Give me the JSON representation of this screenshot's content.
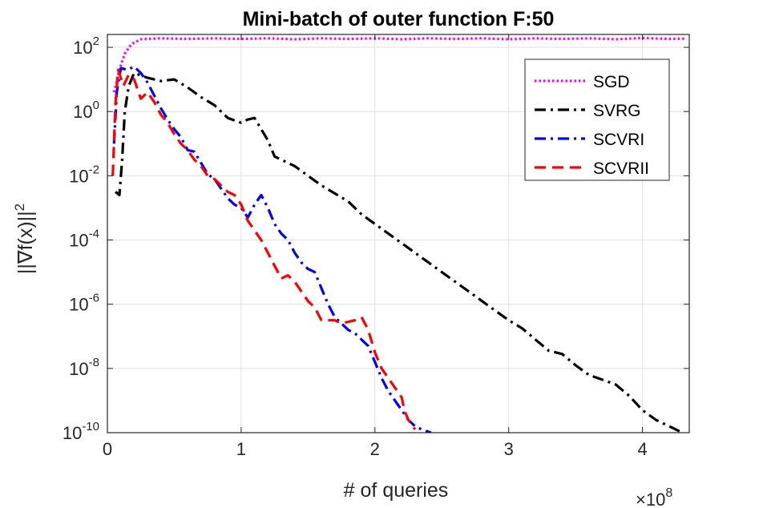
{
  "chart_data": {
    "type": "line",
    "title": "Mini-batch of outer function F:50",
    "xlabel": "# of queries",
    "ylabel": "||∇f(x)||",
    "ylabel_exponent": "2",
    "x_multiplier_base": "×10",
    "x_multiplier_exp": "8",
    "xscale": "linear",
    "yscale": "log",
    "xlim": [
      0,
      4.35
    ],
    "ylim_log10": [
      -10,
      2.4
    ],
    "grid": true,
    "legend_position": "top-right",
    "xticks": [
      {
        "value": 0,
        "label": "0"
      },
      {
        "value": 1,
        "label": "1"
      },
      {
        "value": 2,
        "label": "2"
      },
      {
        "value": 3,
        "label": "3"
      },
      {
        "value": 4,
        "label": "4"
      }
    ],
    "yticks": [
      {
        "exp": 2,
        "base": "10",
        "sup": "2"
      },
      {
        "exp": 0,
        "base": "10",
        "sup": "0"
      },
      {
        "exp": -2,
        "base": "10",
        "sup": "-2"
      },
      {
        "exp": -4,
        "base": "10",
        "sup": "-4"
      },
      {
        "exp": -6,
        "base": "10",
        "sup": "-6"
      },
      {
        "exp": -8,
        "base": "10",
        "sup": "-8"
      },
      {
        "exp": -10,
        "base": "10",
        "sup": "-10"
      }
    ],
    "series": [
      {
        "name": "SGD",
        "color": "#ff00ff",
        "style": "dotted",
        "x_unit": "1e8 queries",
        "y_unit": "log10",
        "points": [
          [
            0.05,
            0.6
          ],
          [
            0.09,
            1.3
          ],
          [
            0.13,
            1.8
          ],
          [
            0.18,
            2.1
          ],
          [
            0.25,
            2.25
          ],
          [
            0.4,
            2.28
          ],
          [
            0.6,
            2.26
          ],
          [
            0.8,
            2.28
          ],
          [
            1.0,
            2.26
          ],
          [
            1.2,
            2.28
          ],
          [
            1.4,
            2.25
          ],
          [
            1.6,
            2.28
          ],
          [
            1.8,
            2.26
          ],
          [
            2.0,
            2.28
          ],
          [
            2.2,
            2.25
          ],
          [
            2.4,
            2.28
          ],
          [
            2.6,
            2.26
          ],
          [
            2.8,
            2.28
          ],
          [
            3.0,
            2.25
          ],
          [
            3.2,
            2.28
          ],
          [
            3.4,
            2.26
          ],
          [
            3.6,
            2.28
          ],
          [
            3.8,
            2.25
          ],
          [
            4.0,
            2.29
          ],
          [
            4.2,
            2.26
          ],
          [
            4.33,
            2.27
          ]
        ]
      },
      {
        "name": "SVRG",
        "color": "#000000",
        "style": "dashdot",
        "x_unit": "1e8 queries",
        "y_unit": "log10",
        "points": [
          [
            0.06,
            -2.5
          ],
          [
            0.09,
            -2.6
          ],
          [
            0.11,
            -1.5
          ],
          [
            0.13,
            0.0
          ],
          [
            0.16,
            0.8
          ],
          [
            0.2,
            1.2
          ],
          [
            0.3,
            1.05
          ],
          [
            0.4,
            0.95
          ],
          [
            0.5,
            1.0
          ],
          [
            0.6,
            0.75
          ],
          [
            0.7,
            0.45
          ],
          [
            0.8,
            0.2
          ],
          [
            0.9,
            -0.2
          ],
          [
            1.0,
            -0.35
          ],
          [
            1.05,
            -0.25
          ],
          [
            1.1,
            -0.2
          ],
          [
            1.15,
            -0.55
          ],
          [
            1.2,
            -0.9
          ],
          [
            1.25,
            -1.4
          ],
          [
            1.3,
            -1.5
          ],
          [
            1.4,
            -1.7
          ],
          [
            1.5,
            -2.0
          ],
          [
            1.6,
            -2.3
          ],
          [
            1.7,
            -2.55
          ],
          [
            1.8,
            -2.8
          ],
          [
            1.9,
            -3.2
          ],
          [
            2.0,
            -3.5
          ],
          [
            2.1,
            -3.8
          ],
          [
            2.2,
            -4.1
          ],
          [
            2.3,
            -4.4
          ],
          [
            2.4,
            -4.7
          ],
          [
            2.5,
            -5.0
          ],
          [
            2.6,
            -5.3
          ],
          [
            2.7,
            -5.6
          ],
          [
            2.8,
            -5.9
          ],
          [
            2.9,
            -6.2
          ],
          [
            3.0,
            -6.5
          ],
          [
            3.1,
            -6.75
          ],
          [
            3.2,
            -7.1
          ],
          [
            3.3,
            -7.45
          ],
          [
            3.4,
            -7.55
          ],
          [
            3.5,
            -7.9
          ],
          [
            3.6,
            -8.2
          ],
          [
            3.7,
            -8.35
          ],
          [
            3.8,
            -8.5
          ],
          [
            3.9,
            -8.85
          ],
          [
            4.0,
            -9.3
          ],
          [
            4.1,
            -9.6
          ],
          [
            4.2,
            -9.8
          ],
          [
            4.3,
            -10.0
          ]
        ]
      },
      {
        "name": "SCVRI",
        "color": "#0000ff",
        "style": "dashdot",
        "x_unit": "1e8 queries",
        "y_unit": "log10",
        "points": [
          [
            0.05,
            -1.0
          ],
          [
            0.07,
            0.6
          ],
          [
            0.1,
            1.35
          ],
          [
            0.15,
            1.3
          ],
          [
            0.2,
            1.4
          ],
          [
            0.25,
            1.2
          ],
          [
            0.3,
            0.9
          ],
          [
            0.35,
            0.5
          ],
          [
            0.4,
            0.1
          ],
          [
            0.45,
            -0.25
          ],
          [
            0.5,
            -0.55
          ],
          [
            0.55,
            -0.8
          ],
          [
            0.6,
            -1.2
          ],
          [
            0.65,
            -1.25
          ],
          [
            0.7,
            -1.6
          ],
          [
            0.75,
            -1.95
          ],
          [
            0.8,
            -2.1
          ],
          [
            0.85,
            -2.4
          ],
          [
            0.9,
            -2.7
          ],
          [
            0.95,
            -2.9
          ],
          [
            1.0,
            -3.0
          ],
          [
            1.05,
            -3.3
          ],
          [
            1.1,
            -2.9
          ],
          [
            1.15,
            -2.6
          ],
          [
            1.2,
            -3.0
          ],
          [
            1.25,
            -3.5
          ],
          [
            1.3,
            -3.8
          ],
          [
            1.35,
            -4.0
          ],
          [
            1.4,
            -4.4
          ],
          [
            1.45,
            -4.7
          ],
          [
            1.5,
            -4.9
          ],
          [
            1.55,
            -5.0
          ],
          [
            1.6,
            -5.5
          ],
          [
            1.65,
            -6.0
          ],
          [
            1.7,
            -6.4
          ],
          [
            1.75,
            -6.6
          ],
          [
            1.8,
            -6.8
          ],
          [
            1.85,
            -6.9
          ],
          [
            1.9,
            -7.1
          ],
          [
            1.95,
            -7.3
          ],
          [
            2.0,
            -7.8
          ],
          [
            2.05,
            -8.3
          ],
          [
            2.1,
            -8.7
          ],
          [
            2.15,
            -9.0
          ],
          [
            2.2,
            -9.3
          ],
          [
            2.25,
            -9.6
          ],
          [
            2.3,
            -9.8
          ],
          [
            2.35,
            -9.9
          ],
          [
            2.42,
            -10.0
          ]
        ]
      },
      {
        "name": "SCVRII",
        "color": "#ff0000",
        "style": "dashed",
        "x_unit": "1e8 queries",
        "y_unit": "log10",
        "points": [
          [
            0.04,
            -2.0
          ],
          [
            0.06,
            0.2
          ],
          [
            0.08,
            1.3
          ],
          [
            0.12,
            0.8
          ],
          [
            0.16,
            1.15
          ],
          [
            0.2,
            1.0
          ],
          [
            0.25,
            0.4
          ],
          [
            0.3,
            0.6
          ],
          [
            0.35,
            0.3
          ],
          [
            0.4,
            -0.1
          ],
          [
            0.45,
            -0.35
          ],
          [
            0.5,
            -0.7
          ],
          [
            0.55,
            -1.0
          ],
          [
            0.6,
            -1.2
          ],
          [
            0.65,
            -1.5
          ],
          [
            0.7,
            -1.7
          ],
          [
            0.75,
            -2.0
          ],
          [
            0.8,
            -2.1
          ],
          [
            0.85,
            -2.3
          ],
          [
            0.9,
            -2.5
          ],
          [
            0.95,
            -2.6
          ],
          [
            1.0,
            -2.9
          ],
          [
            1.05,
            -3.4
          ],
          [
            1.1,
            -3.7
          ],
          [
            1.15,
            -4.0
          ],
          [
            1.2,
            -4.4
          ],
          [
            1.25,
            -4.8
          ],
          [
            1.3,
            -5.2
          ],
          [
            1.35,
            -5.1
          ],
          [
            1.4,
            -5.3
          ],
          [
            1.45,
            -5.6
          ],
          [
            1.5,
            -5.9
          ],
          [
            1.55,
            -6.1
          ],
          [
            1.6,
            -6.5
          ],
          [
            1.65,
            -6.5
          ],
          [
            1.7,
            -6.5
          ],
          [
            1.75,
            -6.6
          ],
          [
            1.8,
            -6.55
          ],
          [
            1.85,
            -6.5
          ],
          [
            1.9,
            -6.4
          ],
          [
            1.95,
            -6.8
          ],
          [
            2.0,
            -7.5
          ],
          [
            2.05,
            -8.0
          ],
          [
            2.1,
            -8.3
          ],
          [
            2.15,
            -8.6
          ],
          [
            2.2,
            -8.9
          ],
          [
            2.22,
            -9.3
          ],
          [
            2.25,
            -9.6
          ],
          [
            2.3,
            -9.9
          ]
        ]
      }
    ]
  }
}
